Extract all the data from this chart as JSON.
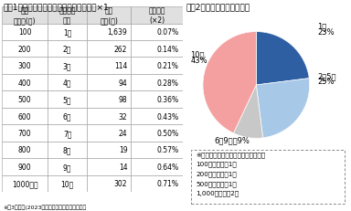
{
  "title1": "図表1　口数別の申込人数および当選確率×1",
  "title2": "図表2　応募口数の構成割合",
  "table_headers": [
    "保有\n株式数(株)",
    "抽選参加\n口数",
    "申込\n人数(名)",
    "当選確率\n(×2)"
  ],
  "table_data": [
    [
      "100",
      "1口",
      "1,639",
      "0.07%"
    ],
    [
      "200",
      "2口",
      "262",
      "0.14%"
    ],
    [
      "300",
      "3口",
      "114",
      "0.21%"
    ],
    [
      "400",
      "4口",
      "94",
      "0.28%"
    ],
    [
      "500",
      "5口",
      "98",
      "0.36%"
    ],
    [
      "600",
      "6口",
      "32",
      "0.43%"
    ],
    [
      "700",
      "7口",
      "24",
      "0.50%"
    ],
    [
      "800",
      "8口",
      "19",
      "0.57%"
    ],
    [
      "900",
      "9口",
      "14",
      "0.64%"
    ],
    [
      "1000以上",
      "10口",
      "302",
      "0.71%"
    ]
  ],
  "footnote1": "※第3回抽選(2023年上半期）における当選確率",
  "pie_values": [
    23,
    25,
    9,
    43
  ],
  "pie_colors": [
    "#2e5fa3",
    "#a8c8e8",
    "#c8c8c8",
    "#f4a0a0"
  ],
  "pie_label_1": "1口",
  "pie_label_1_pct": "23%",
  "pie_label_2": "2～5口",
  "pie_label_2_pct": "25%",
  "pie_label_3": "6～9口　9%",
  "pie_label_4": "10口",
  "pie_label_4_pct": "43%",
  "note_line0": "※第３回当選者の内訳は下記のとおり",
  "note_line1": "100株保有　：1名",
  "note_line2": "200株保有　：1名",
  "note_line3": "500株保有　：1名",
  "note_line4": "1,000株保有：2名",
  "background_color": "#ffffff",
  "table_header_bg": "#e0e0e0",
  "table_line_color": "#999999",
  "title_fontsize": 6.5,
  "table_fontsize": 5.5,
  "pie_fontsize": 6,
  "note_fontsize": 5.2
}
